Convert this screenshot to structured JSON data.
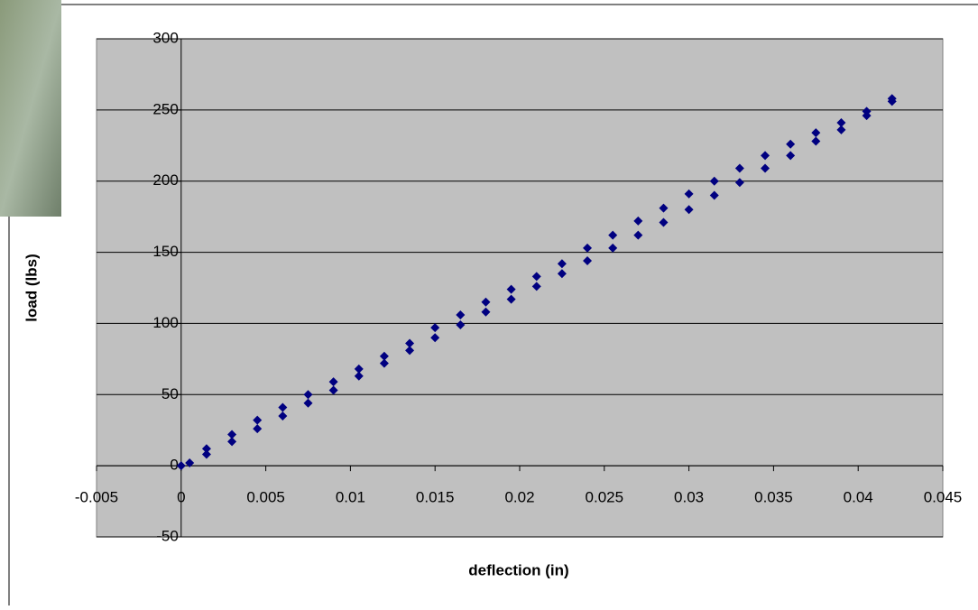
{
  "chart_data": {
    "type": "scatter",
    "x_label": "deflection (in)",
    "y_label": "load (lbs)",
    "xlim": [
      -0.005,
      0.045
    ],
    "xticks": [
      -0.005,
      0,
      0.005,
      0.01,
      0.015,
      0.02,
      0.025,
      0.03,
      0.035,
      0.04,
      0.045
    ],
    "ylim": [
      -50,
      300
    ],
    "yticks": [
      -50,
      0,
      50,
      100,
      150,
      200,
      250,
      300
    ],
    "grid": true,
    "background": "#c0c0c0",
    "series": [
      {
        "color": "#000080",
        "x": [
          0,
          0.0015,
          0.003,
          0.0045,
          0.006,
          0.0075,
          0.009,
          0.0105,
          0.012,
          0.0135,
          0.015,
          0.0165,
          0.018,
          0.0195,
          0.021,
          0.0225,
          0.024,
          0.0255,
          0.027,
          0.0285,
          0.03,
          0.0315,
          0.033,
          0.0345,
          0.036,
          0.0375,
          0.039,
          0.0405,
          0.042,
          0.042,
          0.0405,
          0.039,
          0.0375,
          0.036,
          0.0345,
          0.033,
          0.0315,
          0.03,
          0.0285,
          0.027,
          0.0255,
          0.024,
          0.0225,
          0.021,
          0.0195,
          0.018,
          0.0165,
          0.015,
          0.0135,
          0.012,
          0.0105,
          0.009,
          0.0075,
          0.006,
          0.0045,
          0.003,
          0.0015,
          0.0005
        ],
        "values": [
          0,
          12,
          22,
          32,
          41,
          50,
          59,
          68,
          77,
          86,
          97,
          106,
          115,
          124,
          133,
          142,
          153,
          162,
          172,
          181,
          191,
          200,
          209,
          218,
          226,
          234,
          241,
          249,
          258,
          256,
          246,
          236,
          228,
          218,
          209,
          199,
          190,
          180,
          171,
          162,
          153,
          144,
          135,
          126,
          117,
          108,
          99,
          90,
          81,
          72,
          63,
          53,
          44,
          35,
          26,
          17,
          8,
          2
        ]
      }
    ]
  }
}
